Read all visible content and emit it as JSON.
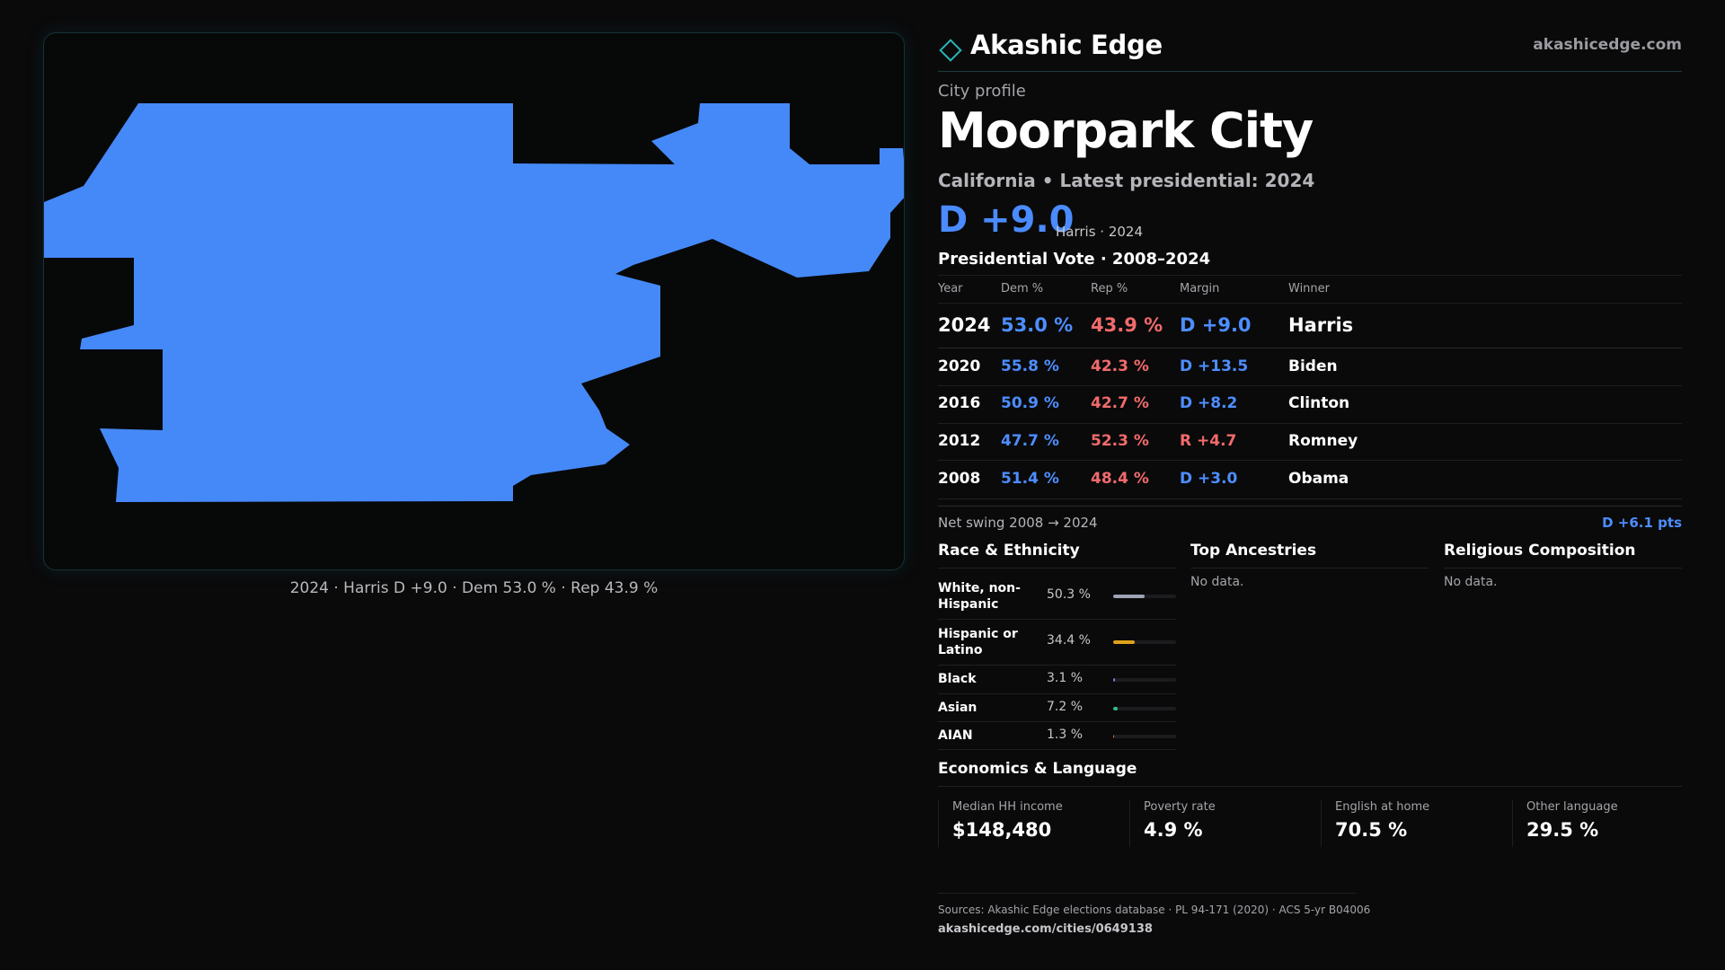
{
  "brand": {
    "name": "Akashic Edge",
    "url": "akashicedge.com",
    "accent": "#2bb3b3"
  },
  "map": {
    "fill_color": "#4589f8",
    "caption": "2024 · Harris D +9.0 · Dem 53.0 % · Rep 43.9 %"
  },
  "profile": {
    "kicker": "City profile",
    "city": "Moorpark City",
    "subtitle": "California • Latest presidential: 2024",
    "headline_margin": "D +9.0",
    "headline_note": "Harris · 2024"
  },
  "vote": {
    "title": "Presidential Vote · 2008–2024",
    "headers": [
      "Year",
      "Dem %",
      "Rep %",
      "Margin",
      "Winner"
    ],
    "rows": [
      {
        "year": "2024",
        "dem": "53.0 %",
        "rep": "43.9 %",
        "margin": "D +9.0",
        "winner": "Harris"
      },
      {
        "year": "2020",
        "dem": "55.8 %",
        "rep": "42.3 %",
        "margin": "D +13.5",
        "winner": "Biden"
      },
      {
        "year": "2016",
        "dem": "50.9 %",
        "rep": "42.7 %",
        "margin": "D +8.2",
        "winner": "Clinton"
      },
      {
        "year": "2012",
        "dem": "47.7 %",
        "rep": "52.3 %",
        "margin": "R +4.7",
        "winner": "Romney"
      },
      {
        "year": "2008",
        "dem": "51.4 %",
        "rep": "48.4 %",
        "margin": "D +3.0",
        "winner": "Obama"
      }
    ],
    "swing_label": "Net swing 2008 → 2024",
    "swing_value": "D +6.1 pts"
  },
  "race": {
    "title": "Race & Ethnicity",
    "items": [
      {
        "label": "White, non-Hispanic",
        "value": "50.3 %",
        "share": 0.503,
        "color": "#9ea3b4"
      },
      {
        "label": "Hispanic or Latino",
        "value": "34.4 %",
        "share": 0.344,
        "color": "#e0a11b"
      },
      {
        "label": "Black",
        "value": "3.1 %",
        "share": 0.031,
        "color": "#8b7cf0"
      },
      {
        "label": "Asian",
        "value": "7.2 %",
        "share": 0.072,
        "color": "#2fbf8a"
      },
      {
        "label": "AIAN",
        "value": "1.3 %",
        "share": 0.013,
        "color": "#e07a3a"
      }
    ]
  },
  "ancestries": {
    "title": "Top Ancestries",
    "empty": "No data."
  },
  "religion": {
    "title": "Religious Composition",
    "empty": "No data."
  },
  "economics": {
    "title": "Economics & Language",
    "cards": [
      {
        "label": "Median HH income",
        "value": "$148,480"
      },
      {
        "label": "Poverty rate",
        "value": "4.9 %"
      },
      {
        "label": "English at home",
        "value": "70.5 %"
      },
      {
        "label": "Other language",
        "value": "29.5 %"
      }
    ]
  },
  "footer": {
    "sources": "Sources: Akashic Edge elections database · PL 94-171 (2020) · ACS 5-yr B04006",
    "url": "akashicedge.com/cities/0649138"
  }
}
